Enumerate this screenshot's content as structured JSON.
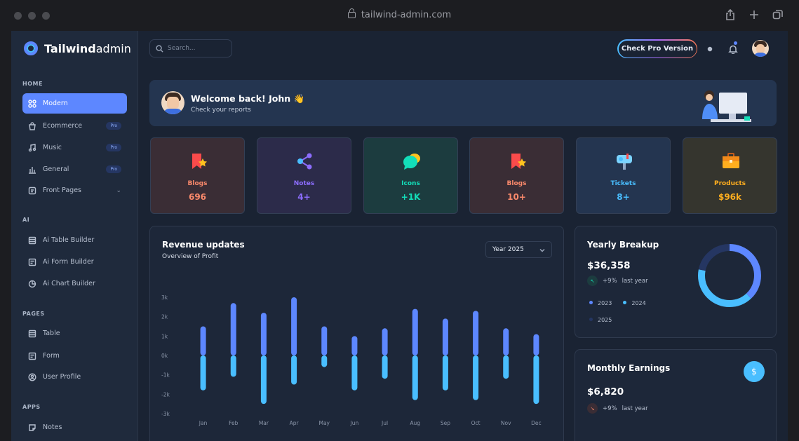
{
  "browser": {
    "url": "tailwind-admin.com"
  },
  "brand": {
    "strong": "Tailwind",
    "light": "admin"
  },
  "sidebar": {
    "sections": [
      {
        "caption": "HOME"
      },
      {
        "caption": "AI"
      },
      {
        "caption": "PAGES"
      },
      {
        "caption": "APPS"
      }
    ],
    "items": [
      {
        "label": "Modern",
        "icon": "grid-icon",
        "active": true
      },
      {
        "label": "Ecommerce",
        "icon": "bag-icon",
        "badge": "Pro"
      },
      {
        "label": "Music",
        "icon": "music-icon",
        "badge": "Pro"
      },
      {
        "label": "General",
        "icon": "chart-bars-icon",
        "badge": "Pro"
      },
      {
        "label": "Front Pages",
        "icon": "page-icon"
      },
      {
        "label": "Ai Table Builder",
        "icon": "table-icon"
      },
      {
        "label": "Ai Form Builder",
        "icon": "form-icon"
      },
      {
        "label": "Ai Chart Builder",
        "icon": "pie-icon"
      },
      {
        "label": "Table",
        "icon": "table-icon"
      },
      {
        "label": "Form",
        "icon": "form-icon"
      },
      {
        "label": "User Profile",
        "icon": "user-icon"
      },
      {
        "label": "Notes",
        "icon": "notes-icon"
      }
    ]
  },
  "header": {
    "search_placeholder": "Search...",
    "pro_button": "Check Pro Version"
  },
  "welcome": {
    "title": "Welcome back! John  👋",
    "subtitle": "Check your reports"
  },
  "stats": [
    {
      "label": "Blogs",
      "value": "696",
      "color": "#fa896b",
      "bg": "#3a2d35"
    },
    {
      "label": "Notes",
      "value": "4+",
      "color": "#8c6dfd",
      "bg": "#2c2b4a"
    },
    {
      "label": "Icons",
      "value": "+1K",
      "color": "#13deb9",
      "bg": "#1c3c3f"
    },
    {
      "label": "Blogs",
      "value": "10+",
      "color": "#fa896b",
      "bg": "#3a2d35"
    },
    {
      "label": "Tickets",
      "value": "8+",
      "color": "#49beff",
      "bg": "#243550"
    },
    {
      "label": "Products",
      "value": "$96k",
      "color": "#ffae1f",
      "bg": "#35352e"
    }
  ],
  "revenue": {
    "title": "Revenue updates",
    "subtitle": "Overview of Profit",
    "year_select": "Year 2025"
  },
  "chart_data": {
    "type": "bar",
    "categories": [
      "Jan",
      "Feb",
      "Mar",
      "Apr",
      "May",
      "Jun",
      "Jul",
      "Aug",
      "Sep",
      "Oct",
      "Nov",
      "Dec"
    ],
    "y_ticks": [
      "3k",
      "2k",
      "1k",
      "0k",
      "-1k",
      "-2k",
      "-3k"
    ],
    "ylim": [
      -3000,
      3000
    ],
    "series": [
      {
        "values": [
          1500,
          2700,
          2200,
          3000,
          1500,
          1000,
          1400,
          2400,
          1900,
          2300,
          1400,
          1100
        ],
        "color": "#5d87ff"
      },
      {
        "values": [
          -1800,
          -1100,
          -2500,
          -1500,
          -600,
          -1800,
          -1200,
          -2300,
          -1800,
          -2300,
          -1200,
          -2500
        ],
        "color": "#49beff"
      }
    ]
  },
  "yearly": {
    "title": "Yearly Breakup",
    "amount": "$36,358",
    "delta": "+9%",
    "delta_label": "last year",
    "legend": [
      {
        "label": "2023",
        "color": "#5d87ff"
      },
      {
        "label": "2024",
        "color": "#49beff"
      },
      {
        "label": "2025",
        "color": "#253662"
      }
    ],
    "donut": [
      38,
      40,
      22
    ]
  },
  "monthly": {
    "title": "Monthly Earnings",
    "amount": "$6,820",
    "delta": "+9%",
    "delta_label": "last year",
    "button_icon": "$"
  }
}
